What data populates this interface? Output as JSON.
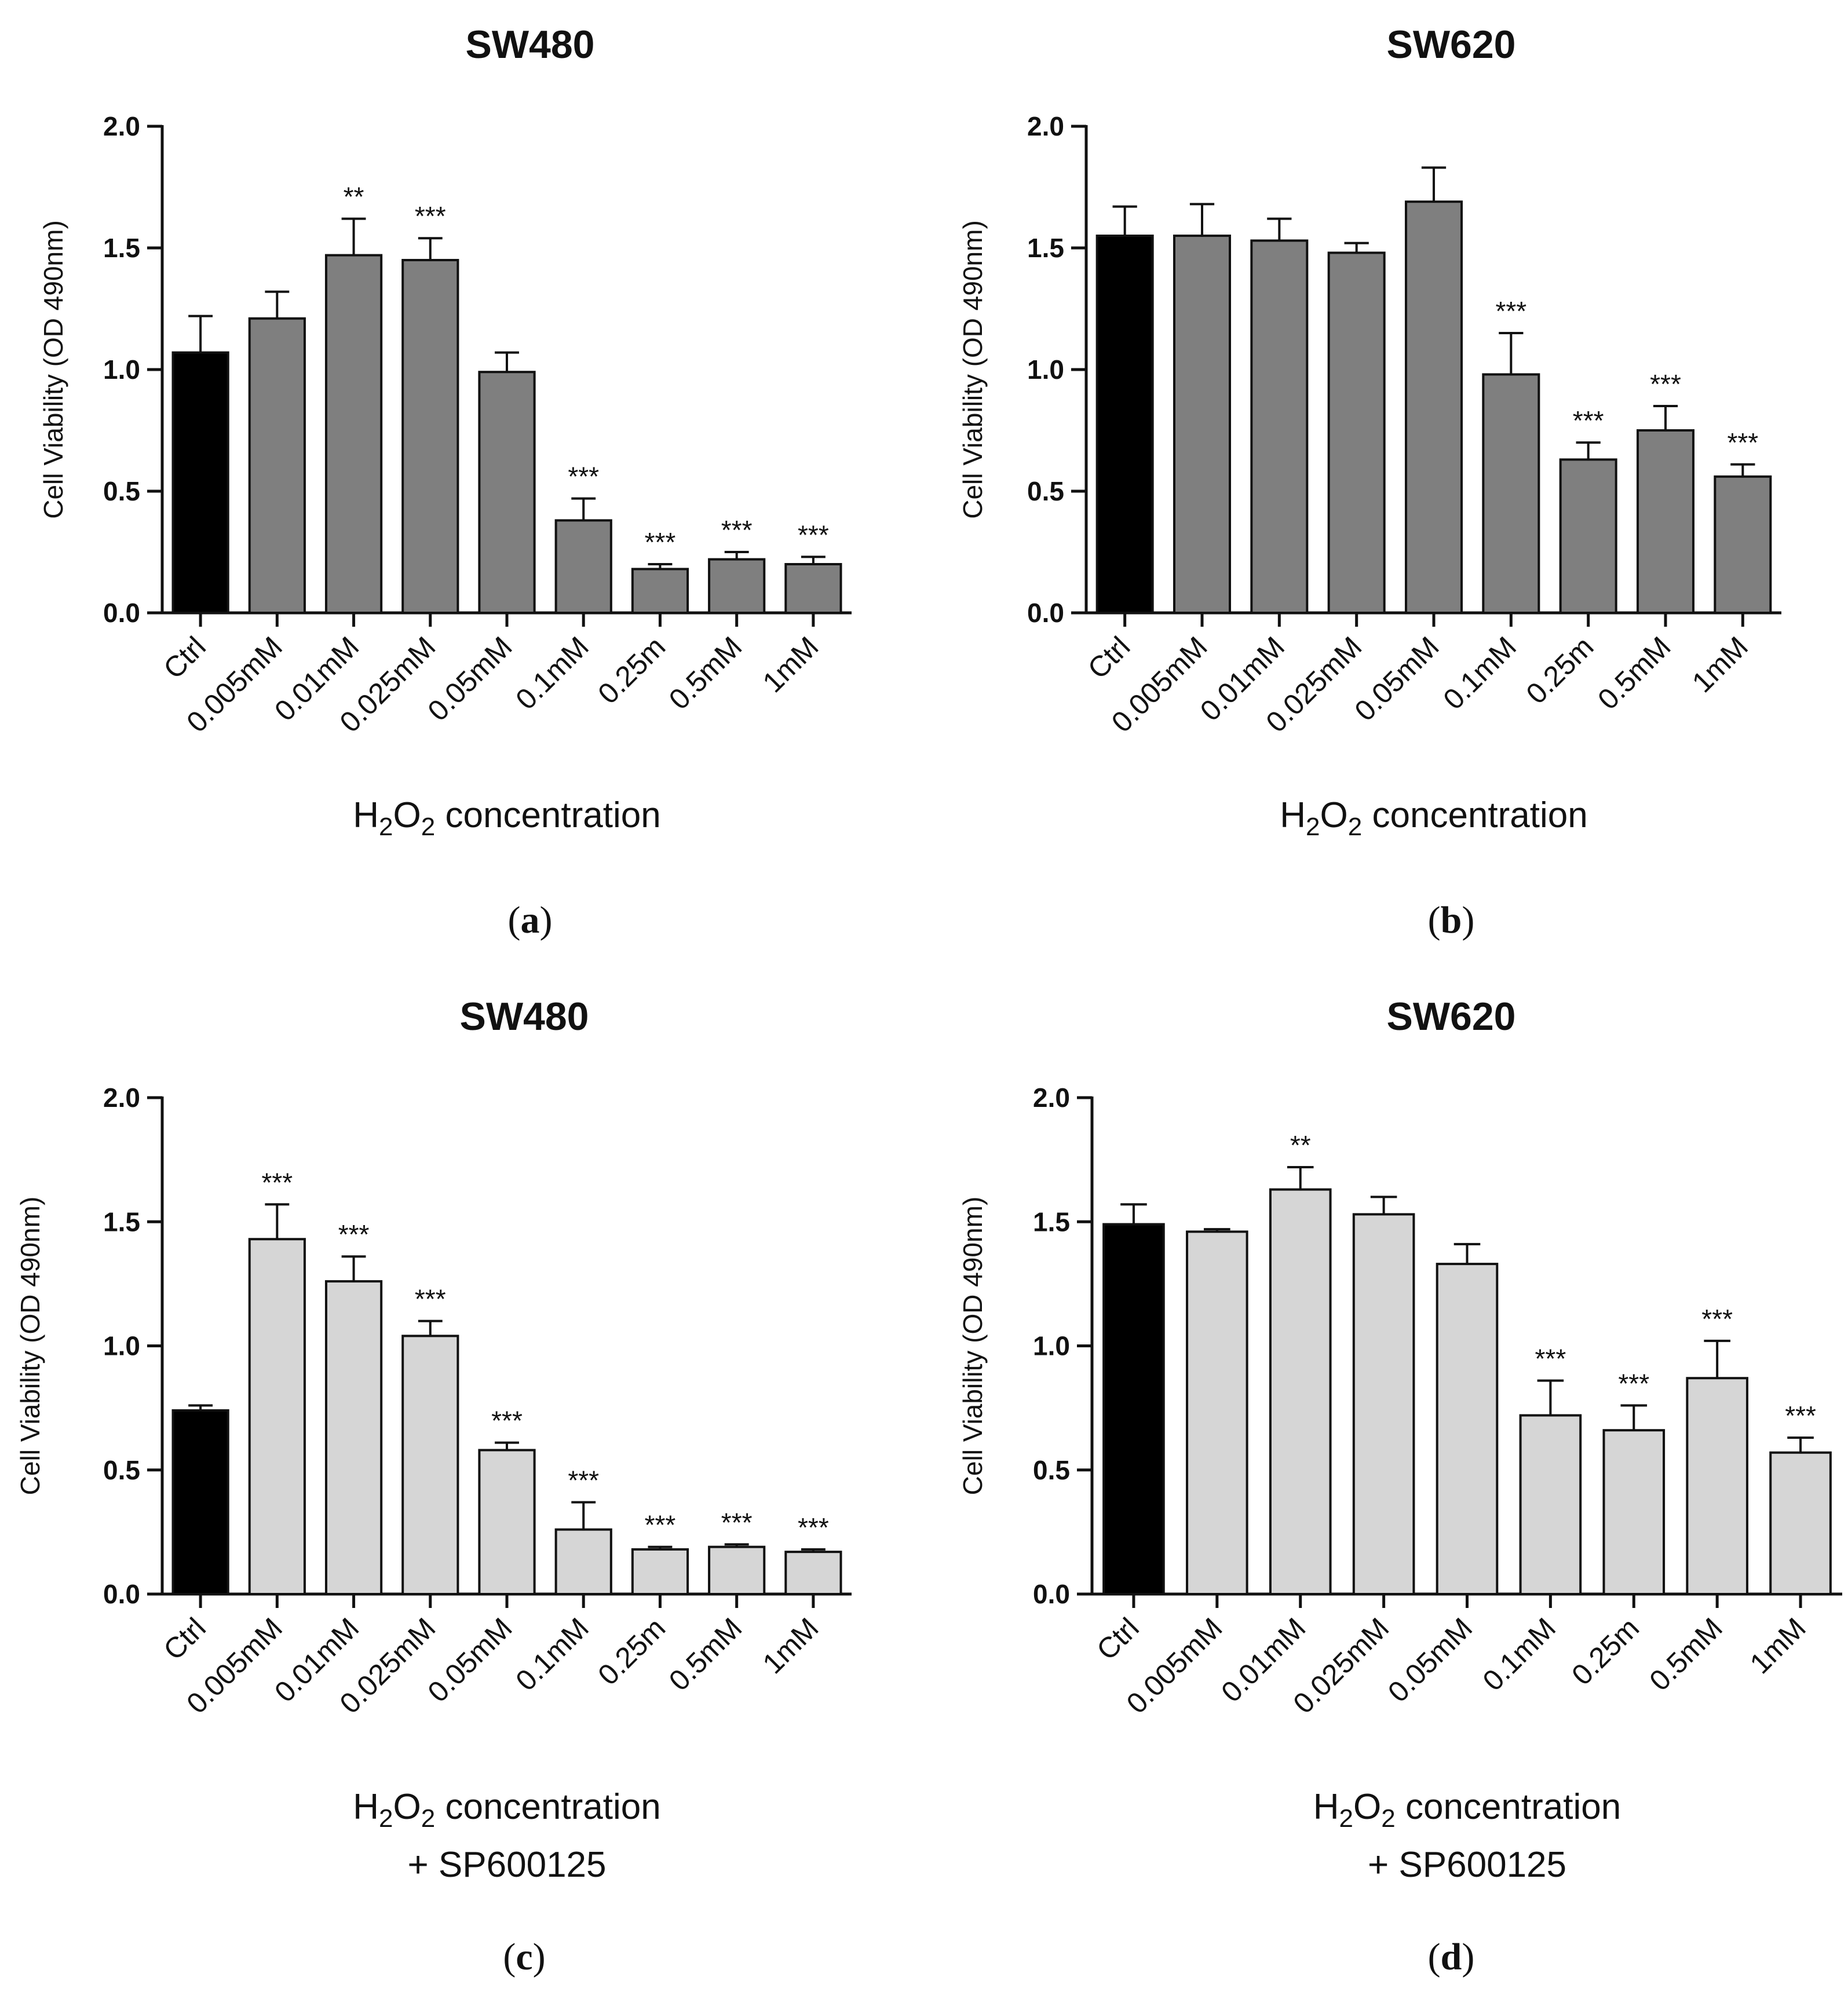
{
  "chart_data": [
    {
      "type": "bar",
      "panel": "a",
      "title": "SW480",
      "ylabel": "Cell Viability (OD 490nm)",
      "xlabel_main": "H",
      "xlabel_sub1": "2",
      "xlabel_mid": "O",
      "xlabel_sub2": "2",
      "xlabel_rest": " concentration",
      "xlabel_line2": "",
      "ylim": [
        0,
        2.0
      ],
      "yticks": [
        "0.0",
        "0.5",
        "1.0",
        "1.5",
        "2.0"
      ],
      "categories": [
        "Ctrl",
        "0.005mM",
        "0.01mM",
        "0.025mM",
        "0.05mM",
        "0.1mM",
        "0.25m",
        "0.5mM",
        "1mM"
      ],
      "values": [
        1.07,
        1.21,
        1.47,
        1.45,
        0.99,
        0.38,
        0.18,
        0.22,
        0.2
      ],
      "errors": [
        0.15,
        0.11,
        0.15,
        0.09,
        0.08,
        0.09,
        0.02,
        0.03,
        0.03
      ],
      "significance": [
        "",
        "",
        "**",
        "***",
        "",
        "***",
        "***",
        "***",
        "***"
      ],
      "bar_colors": [
        "#000000",
        "#7f7f7f",
        "#7f7f7f",
        "#7f7f7f",
        "#7f7f7f",
        "#7f7f7f",
        "#7f7f7f",
        "#7f7f7f",
        "#7f7f7f"
      ]
    },
    {
      "type": "bar",
      "panel": "b",
      "title": "SW620",
      "ylabel": "Cell Viability (OD 490nm)",
      "xlabel_main": "H",
      "xlabel_sub1": "2",
      "xlabel_mid": "O",
      "xlabel_sub2": "2",
      "xlabel_rest": " concentration",
      "xlabel_line2": "",
      "ylim": [
        0,
        2.0
      ],
      "yticks": [
        "0.0",
        "0.5",
        "1.0",
        "1.5",
        "2.0"
      ],
      "categories": [
        "Ctrl",
        "0.005mM",
        "0.01mM",
        "0.025mM",
        "0.05mM",
        "0.1mM",
        "0.25m",
        "0.5mM",
        "1mM"
      ],
      "values": [
        1.55,
        1.55,
        1.53,
        1.48,
        1.69,
        0.98,
        0.63,
        0.75,
        0.56
      ],
      "errors": [
        0.12,
        0.13,
        0.09,
        0.04,
        0.14,
        0.17,
        0.07,
        0.1,
        0.05
      ],
      "significance": [
        "",
        "",
        "",
        "",
        "",
        "***",
        "***",
        "***",
        "***"
      ],
      "bar_colors": [
        "#000000",
        "#7f7f7f",
        "#7f7f7f",
        "#7f7f7f",
        "#7f7f7f",
        "#7f7f7f",
        "#7f7f7f",
        "#7f7f7f",
        "#7f7f7f"
      ]
    },
    {
      "type": "bar",
      "panel": "c",
      "title": "SW480",
      "ylabel": "Cell Viability (OD 490nm)",
      "xlabel_main": "H",
      "xlabel_sub1": "2",
      "xlabel_mid": "O",
      "xlabel_sub2": "2",
      "xlabel_rest": " concentration",
      "xlabel_line2": "+ SP600125",
      "ylim": [
        0,
        2.0
      ],
      "yticks": [
        "0.0",
        "0.5",
        "1.0",
        "1.5",
        "2.0"
      ],
      "categories": [
        "Ctrl",
        "0.005mM",
        "0.01mM",
        "0.025mM",
        "0.05mM",
        "0.1mM",
        "0.25m",
        "0.5mM",
        "1mM"
      ],
      "values": [
        0.74,
        1.43,
        1.26,
        1.04,
        0.58,
        0.26,
        0.18,
        0.19,
        0.17
      ],
      "errors": [
        0.02,
        0.14,
        0.1,
        0.06,
        0.03,
        0.11,
        0.01,
        0.01,
        0.01
      ],
      "significance": [
        "",
        "***",
        "***",
        "***",
        "***",
        "***",
        "***",
        "***",
        "***"
      ],
      "bar_colors": [
        "#000000",
        "#d6d6d6",
        "#d6d6d6",
        "#d6d6d6",
        "#d6d6d6",
        "#d6d6d6",
        "#d6d6d6",
        "#d6d6d6",
        "#d6d6d6"
      ]
    },
    {
      "type": "bar",
      "panel": "d",
      "title": "SW620",
      "ylabel": "Cell Viability (OD 490nm)",
      "xlabel_main": "H",
      "xlabel_sub1": "2",
      "xlabel_mid": "O",
      "xlabel_sub2": "2",
      "xlabel_rest": " concentration",
      "xlabel_line2": "+ SP600125",
      "ylim": [
        0,
        2.0
      ],
      "yticks": [
        "0.0",
        "0.5",
        "1.0",
        "1.5",
        "2.0"
      ],
      "categories": [
        "Ctrl",
        "0.005mM",
        "0.01mM",
        "0.025mM",
        "0.05mM",
        "0.1mM",
        "0.25m",
        "0.5mM",
        "1mM"
      ],
      "values": [
        1.49,
        1.46,
        1.63,
        1.53,
        1.33,
        0.72,
        0.66,
        0.87,
        0.57
      ],
      "errors": [
        0.08,
        0.01,
        0.09,
        0.07,
        0.08,
        0.14,
        0.1,
        0.15,
        0.06
      ],
      "significance": [
        "",
        "",
        "**",
        "",
        "",
        "***",
        "***",
        "***",
        "***"
      ],
      "bar_colors": [
        "#000000",
        "#d6d6d6",
        "#d6d6d6",
        "#d6d6d6",
        "#d6d6d6",
        "#d6d6d6",
        "#d6d6d6",
        "#d6d6d6",
        "#d6d6d6"
      ]
    }
  ],
  "panel_labels": [
    {
      "open": "(",
      "letter": "a",
      "close": ")"
    },
    {
      "open": "(",
      "letter": "b",
      "close": ")"
    },
    {
      "open": "(",
      "letter": "c",
      "close": ")"
    },
    {
      "open": "(",
      "letter": "d",
      "close": ")"
    }
  ]
}
